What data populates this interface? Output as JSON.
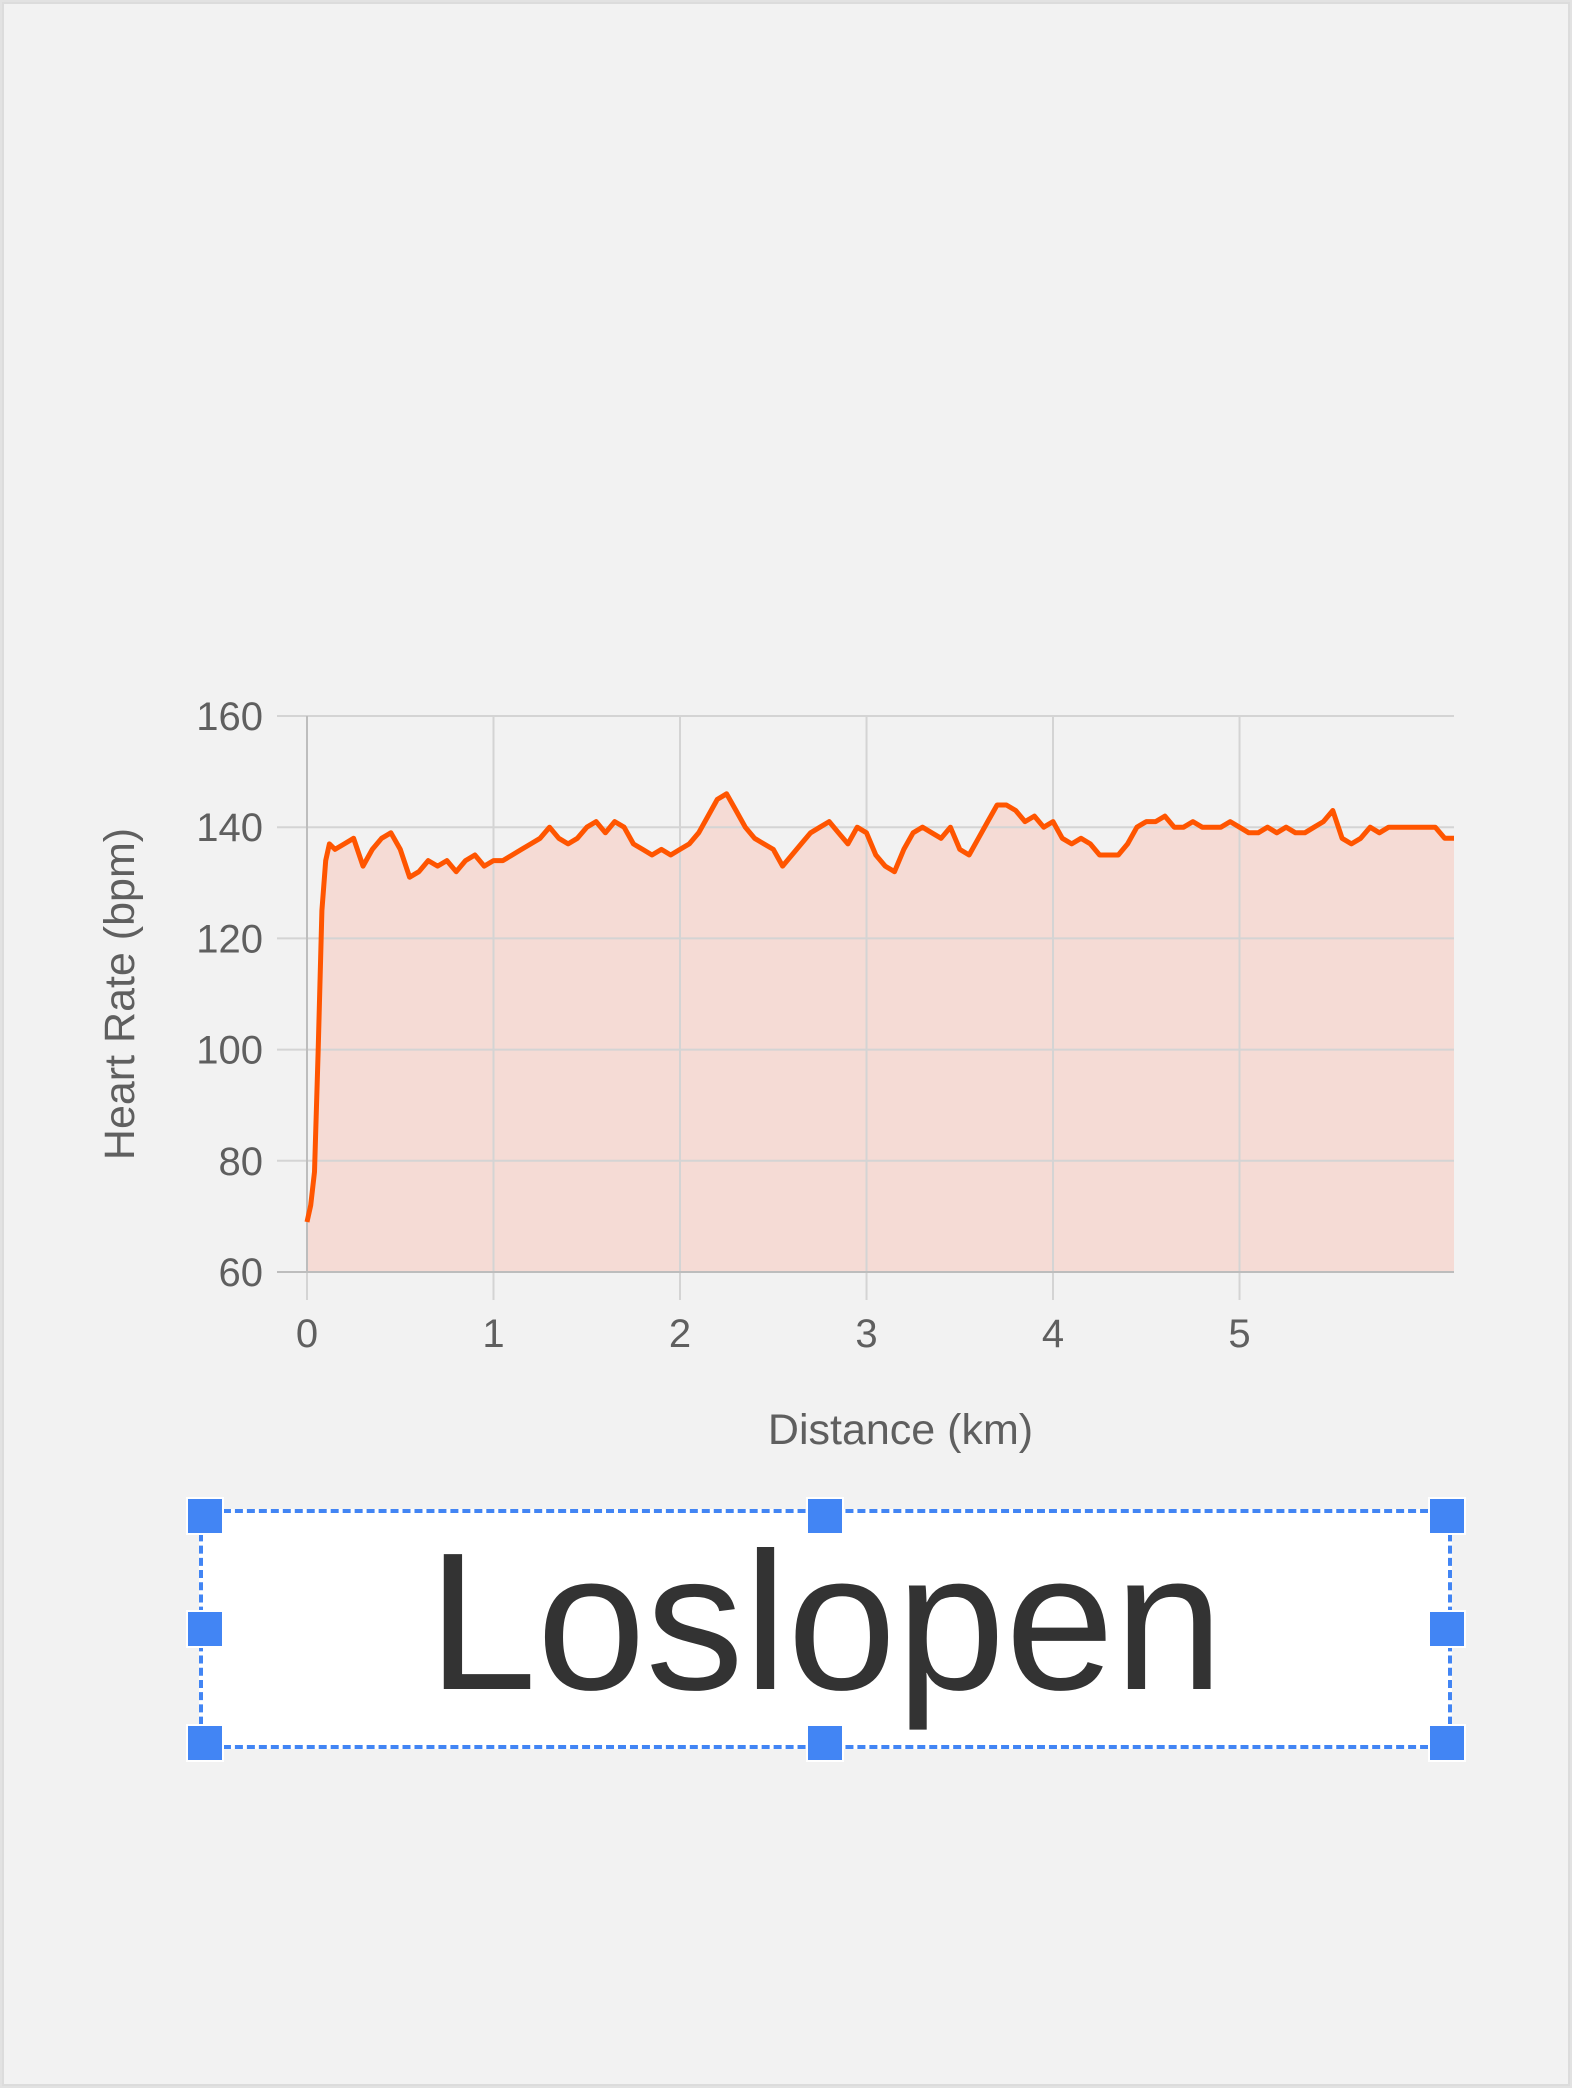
{
  "chart_data": {
    "type": "area",
    "xlabel": "Distance (km)",
    "ylabel": "Heart Rate (bpm)",
    "xlim": [
      0,
      6.15
    ],
    "ylim": [
      60,
      160
    ],
    "xticks": [
      0,
      1,
      2,
      3,
      4,
      5
    ],
    "yticks": [
      60,
      80,
      100,
      120,
      140,
      160
    ],
    "grid": true,
    "line_color": "#ff5500",
    "fill_color": "#f5dbd5",
    "series": [
      {
        "x": [
          0,
          0.02,
          0.04,
          0.06,
          0.08,
          0.1,
          0.12,
          0.15,
          0.2,
          0.25,
          0.3,
          0.35,
          0.4,
          0.45,
          0.5,
          0.55,
          0.6,
          0.65,
          0.7,
          0.75,
          0.8,
          0.85,
          0.9,
          0.95,
          1.0,
          1.05,
          1.1,
          1.15,
          1.2,
          1.25,
          1.3,
          1.35,
          1.4,
          1.45,
          1.5,
          1.55,
          1.6,
          1.65,
          1.7,
          1.75,
          1.8,
          1.85,
          1.9,
          1.95,
          2.0,
          2.05,
          2.1,
          2.15,
          2.2,
          2.25,
          2.3,
          2.35,
          2.4,
          2.45,
          2.5,
          2.55,
          2.6,
          2.65,
          2.7,
          2.75,
          2.8,
          2.85,
          2.9,
          2.95,
          3.0,
          3.05,
          3.1,
          3.15,
          3.2,
          3.25,
          3.3,
          3.35,
          3.4,
          3.45,
          3.5,
          3.55,
          3.6,
          3.65,
          3.7,
          3.75,
          3.8,
          3.85,
          3.9,
          3.95,
          4.0,
          4.05,
          4.1,
          4.15,
          4.2,
          4.25,
          4.3,
          4.35,
          4.4,
          4.45,
          4.5,
          4.55,
          4.6,
          4.65,
          4.7,
          4.75,
          4.8,
          4.85,
          4.9,
          4.95,
          5.0,
          5.05,
          5.1,
          5.15,
          5.2,
          5.25,
          5.3,
          5.35,
          5.4,
          5.45,
          5.5,
          5.55,
          5.6,
          5.65,
          5.7,
          5.75,
          5.8,
          5.85,
          5.9,
          5.95,
          6.0,
          6.05,
          6.1,
          6.15
        ],
        "values": [
          69,
          72,
          78,
          100,
          125,
          134,
          137,
          136,
          137,
          138,
          133,
          136,
          138,
          139,
          136,
          131,
          132,
          134,
          133,
          134,
          132,
          134,
          135,
          133,
          134,
          134,
          135,
          136,
          137,
          138,
          140,
          138,
          137,
          138,
          140,
          141,
          139,
          141,
          140,
          137,
          136,
          135,
          136,
          135,
          136,
          137,
          139,
          142,
          145,
          146,
          143,
          140,
          138,
          137,
          136,
          133,
          135,
          137,
          139,
          140,
          141,
          139,
          137,
          140,
          139,
          135,
          133,
          132,
          136,
          139,
          140,
          139,
          138,
          140,
          136,
          135,
          138,
          141,
          144,
          144,
          143,
          141,
          142,
          140,
          141,
          138,
          137,
          138,
          137,
          135,
          135,
          135,
          137,
          140,
          141,
          141,
          142,
          140,
          140,
          141,
          140,
          140,
          140,
          141,
          140,
          139,
          139,
          140,
          139,
          140,
          139,
          139,
          140,
          141,
          143,
          138,
          137,
          138,
          140,
          139,
          140,
          140,
          140,
          140,
          140,
          140,
          138,
          138
        ]
      }
    ]
  },
  "textbox": {
    "text": "Loslopen"
  }
}
